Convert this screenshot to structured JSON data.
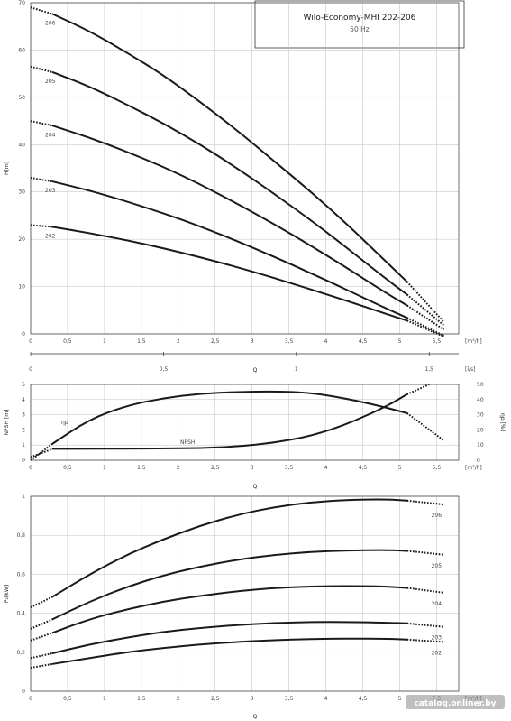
{
  "title_box": {
    "title": "Wilo-Economy-MHI 202-206",
    "subtitle": "50 Hz"
  },
  "watermark": "catalog.onliner.by",
  "chart_data": [
    {
      "type": "line",
      "name": "head",
      "ylabel": "H[m]",
      "xlabel_unit": "[m³/h]",
      "xlabel2_unit": "[l/s]",
      "xlabel": "Q",
      "xlim": [
        0,
        5.8
      ],
      "ylim": [
        0,
        70
      ],
      "xticks": [
        "0",
        "0,5",
        "1",
        "1,5",
        "2",
        "2,5",
        "3",
        "3,5",
        "4",
        "4,5",
        "5",
        "5,5"
      ],
      "yticks": [
        "0",
        "10",
        "20",
        "30",
        "40",
        "50",
        "60",
        "70"
      ],
      "x2ticks": [
        "0",
        "0,5",
        "1",
        "1,5"
      ],
      "series": [
        {
          "name": "206",
          "x": [
            0,
            0.3,
            0.8,
            1.3,
            1.8,
            2.3,
            2.8,
            3.3,
            3.8,
            4.3,
            4.8,
            5.1,
            5.6
          ],
          "y": [
            69,
            67.6,
            64,
            59.5,
            54.7,
            49,
            43,
            36.5,
            30,
            23,
            15.5,
            11,
            2.5
          ]
        },
        {
          "name": "205",
          "x": [
            0,
            0.3,
            0.8,
            1.3,
            1.8,
            2.3,
            2.8,
            3.3,
            3.8,
            4.3,
            4.8,
            5.1,
            5.6
          ],
          "y": [
            56.5,
            55.3,
            52.3,
            48.5,
            44.5,
            40,
            35,
            29.6,
            24,
            18,
            11.8,
            8.3,
            1.8
          ]
        },
        {
          "name": "204",
          "x": [
            0,
            0.3,
            0.8,
            1.3,
            1.8,
            2.3,
            2.8,
            3.3,
            3.8,
            4.3,
            4.8,
            5.1,
            5.6
          ],
          "y": [
            45,
            44,
            41.5,
            38.5,
            35.3,
            31.6,
            27.5,
            23.2,
            18.6,
            13.8,
            8.8,
            6,
            0.9
          ]
        },
        {
          "name": "203",
          "x": [
            0,
            0.3,
            0.8,
            1.3,
            1.8,
            2.3,
            2.8,
            3.3,
            3.8,
            4.3,
            4.8,
            5.1,
            5.6
          ],
          "y": [
            33,
            32.2,
            30.3,
            28,
            25.5,
            22.7,
            19.6,
            16.3,
            12.8,
            9.2,
            5.5,
            3.4,
            -0.4
          ]
        },
        {
          "name": "202",
          "x": [
            0,
            0.3,
            0.8,
            1.3,
            1.8,
            2.3,
            2.8,
            3.3,
            3.8,
            4.3,
            4.8,
            5.1,
            5.6
          ],
          "y": [
            23,
            22.6,
            21.3,
            19.8,
            18.1,
            16.2,
            14.1,
            11.8,
            9.4,
            6.9,
            4.3,
            2.8,
            -0.6
          ]
        }
      ],
      "solid_range": [
        0.3,
        5.1
      ]
    },
    {
      "type": "line",
      "name": "npsh-efficiency",
      "ylabel": "NPSH [m]",
      "ylabel_right": "ηp [%]",
      "xlabel_unit": "[m³/h]",
      "xlabel": "Q",
      "xlim": [
        0,
        5.8
      ],
      "ylim": [
        0,
        5
      ],
      "ylim_right": [
        0,
        50
      ],
      "xticks": [
        "0",
        "0,5",
        "1",
        "1,5",
        "2",
        "2,5",
        "3",
        "3,5",
        "4",
        "4,5",
        "5",
        "5,5"
      ],
      "yticks": [
        "0",
        "1",
        "2",
        "3",
        "4",
        "5"
      ],
      "yticks_right": [
        "0",
        "10",
        "20",
        "30",
        "40",
        "50"
      ],
      "series": [
        {
          "name": "ηp",
          "axis": "right",
          "x": [
            0,
            0.3,
            0.8,
            1.3,
            1.8,
            2.3,
            2.8,
            3.3,
            3.8,
            4.3,
            4.8,
            5.1,
            5.6
          ],
          "y": [
            0,
            11,
            27,
            36,
            41,
            44,
            45,
            45.5,
            44.5,
            40.5,
            35,
            31,
            13
          ]
        },
        {
          "name": "NPSH",
          "axis": "left",
          "x": [
            0,
            0.3,
            0.8,
            1.3,
            1.8,
            2.3,
            2.8,
            3.3,
            3.8,
            4.3,
            4.8,
            5.1,
            5.4
          ],
          "y": [
            0.2,
            0.75,
            0.75,
            0.76,
            0.78,
            0.8,
            0.9,
            1.15,
            1.6,
            2.4,
            3.5,
            4.35,
            5.0
          ]
        }
      ],
      "solid_range": [
        0.3,
        5.1
      ]
    },
    {
      "type": "line",
      "name": "power",
      "ylabel": "P₂[kW]",
      "xlabel_unit": "[m³/h]",
      "xlabel": "Q",
      "xlim": [
        0,
        5.8
      ],
      "ylim": [
        0,
        1.0
      ],
      "xticks": [
        "0",
        "0,5",
        "1",
        "1,5",
        "2",
        "2,5",
        "3",
        "3,5",
        "4",
        "4,5",
        "5",
        "5,5"
      ],
      "yticks": [
        "0",
        "0,2",
        "0,4",
        "0,6",
        "0,8",
        "1"
      ],
      "series": [
        {
          "name": "206",
          "x": [
            0,
            0.3,
            0.8,
            1.3,
            1.8,
            2.3,
            2.8,
            3.3,
            3.8,
            4.3,
            4.8,
            5.1,
            5.6
          ],
          "y": [
            0.43,
            0.485,
            0.6,
            0.7,
            0.78,
            0.85,
            0.905,
            0.945,
            0.97,
            0.982,
            0.985,
            0.978,
            0.958
          ]
        },
        {
          "name": "205",
          "x": [
            0,
            0.3,
            0.8,
            1.3,
            1.8,
            2.3,
            2.8,
            3.3,
            3.8,
            4.3,
            4.8,
            5.1,
            5.6
          ],
          "y": [
            0.32,
            0.37,
            0.46,
            0.535,
            0.595,
            0.64,
            0.675,
            0.7,
            0.715,
            0.722,
            0.725,
            0.72,
            0.7
          ]
        },
        {
          "name": "204",
          "x": [
            0,
            0.3,
            0.8,
            1.3,
            1.8,
            2.3,
            2.8,
            3.3,
            3.8,
            4.3,
            4.8,
            5.1,
            5.6
          ],
          "y": [
            0.26,
            0.3,
            0.37,
            0.42,
            0.46,
            0.49,
            0.513,
            0.53,
            0.538,
            0.54,
            0.538,
            0.53,
            0.505
          ]
        },
        {
          "name": "203",
          "x": [
            0,
            0.3,
            0.8,
            1.3,
            1.8,
            2.3,
            2.8,
            3.3,
            3.8,
            4.3,
            4.8,
            5.1,
            5.6
          ],
          "y": [
            0.17,
            0.195,
            0.24,
            0.275,
            0.305,
            0.325,
            0.34,
            0.35,
            0.355,
            0.355,
            0.352,
            0.348,
            0.33
          ]
        },
        {
          "name": "202",
          "x": [
            0,
            0.3,
            0.8,
            1.3,
            1.8,
            2.3,
            2.8,
            3.3,
            3.8,
            4.3,
            4.8,
            5.1,
            5.6
          ],
          "y": [
            0.12,
            0.14,
            0.17,
            0.2,
            0.222,
            0.24,
            0.253,
            0.262,
            0.268,
            0.27,
            0.27,
            0.265,
            0.253
          ]
        }
      ],
      "solid_range": [
        0.3,
        5.1
      ]
    }
  ]
}
